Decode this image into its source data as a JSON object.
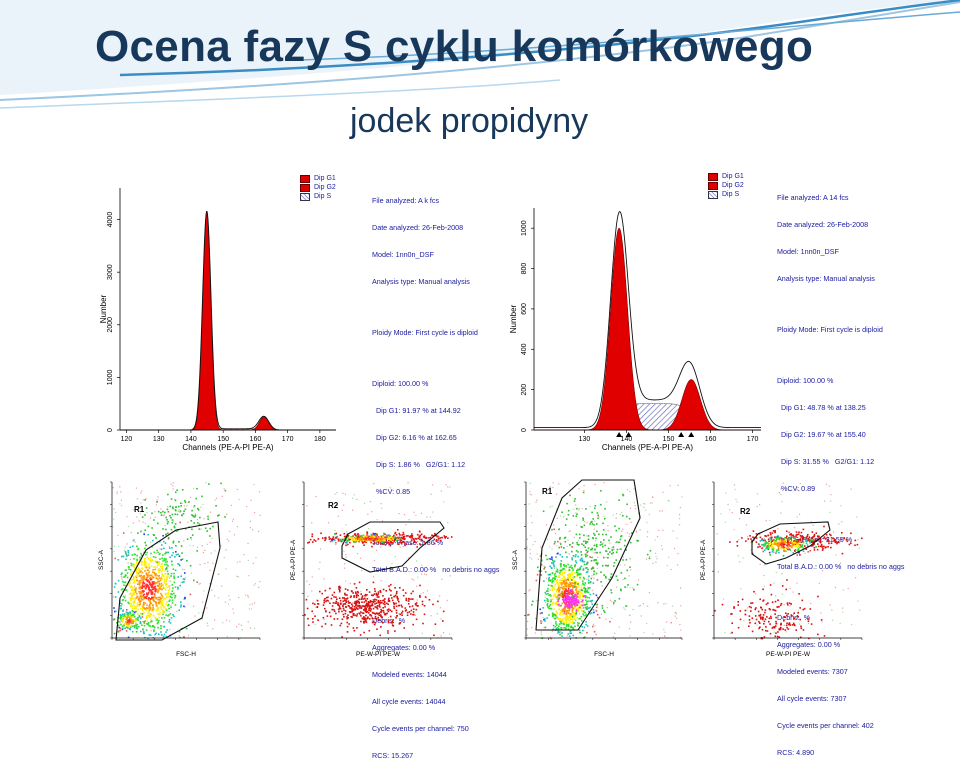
{
  "title": "Ocena fazy S cyklu komórkowego",
  "subtitle": "jodek propidyny",
  "colors": {
    "title": "#17385a",
    "g1_fill": "#e10000",
    "g2_fill": "#e10000",
    "s_fill": "#9aa3d6",
    "info_text": "#1a1aa0",
    "accent_swoosh": "#3a8cc4"
  },
  "legend": [
    "Dip G1",
    "Dip G2",
    "Dip S"
  ],
  "panels": [
    {
      "info": {
        "header": [
          "File analyzed: A k fcs",
          "Date analyzed: 26-Feb-2008",
          "Model: 1nn0n_DSF",
          "Analysis type: Manual analysis"
        ],
        "ploidy": "Ploidy Mode: First cycle is diploid",
        "diploid": [
          "Diploid: 100.00 %",
          "  Dip G1: 91.97 % at 144.92",
          "  Dip G2: 6.16 % at 162.65",
          "  Dip S: 1.86 %   G2/G1: 1.12",
          "  %CV: 0.85"
        ],
        "totals": [
          "Total S-Phase: 1.86 %",
          "Total B.A.D.: 0.00 %   no debris no aggs"
        ],
        "stats": [
          "Debris:  %",
          "Aggregates: 0.00 %",
          "Modeled events: 14044",
          "All cycle events: 14044",
          "Cycle events per channel: 750",
          "RCS: 15.267"
        ]
      }
    },
    {
      "info": {
        "header": [
          "File analyzed: A 14 fcs",
          "Date analyzed: 26-Feb-2008",
          "Model: 1nn0n_DSF",
          "Analysis type: Manual analysis"
        ],
        "ploidy": "Ploidy Mode: First cycle is diploid",
        "diploid": [
          "Diploid: 100.00 %",
          "  Dip G1: 48.78 % at 138.25",
          "  Dip G2: 19.67 % at 155.40",
          "  Dip S: 31.55 %   G2/G1: 1.12",
          "  %CV: 0.89"
        ],
        "totals": [
          "Total S-Phase: 31.55 %",
          "Total B.A.D.: 0.00 %   no debris no aggs"
        ],
        "stats": [
          "Debris:  %",
          "Aggregates: 0.00 %",
          "Modeled events: 7307",
          "All cycle events: 7307",
          "Cycle events per channel: 402",
          "RCS: 4.890"
        ]
      }
    }
  ],
  "chart_data": [
    {
      "type": "area",
      "xlabel": "Channels (PE-A-PI PE-A)",
      "ylabel": "Number",
      "xlim": [
        118,
        185
      ],
      "ylim": [
        0,
        4600
      ],
      "xticks": [
        120,
        130,
        140,
        150,
        160,
        170,
        180
      ],
      "yticks": [
        0,
        1000,
        2000,
        3000,
        4000
      ],
      "series": [
        {
          "name": "Dip G1",
          "peak_x": 144.92,
          "peak_y": 4150,
          "sd": 1.25
        },
        {
          "name": "Dip G2",
          "peak_x": 162.65,
          "peak_y": 250,
          "sd": 1.4
        },
        {
          "name": "Dip S",
          "x_range": [
            144.92,
            162.65
          ],
          "level": 22
        }
      ]
    },
    {
      "type": "area",
      "xlabel": "Channels (PE-A-PI PE-A)",
      "ylabel": "Number",
      "xlim": [
        118,
        172
      ],
      "ylim": [
        0,
        1100
      ],
      "xticks": [
        130,
        140,
        150,
        160,
        170
      ],
      "yticks": [
        0,
        200,
        400,
        600,
        800,
        1000
      ],
      "series": [
        {
          "name": "Dip G1",
          "peak_x": 138.25,
          "peak_y": 1000,
          "sd": 2.0
        },
        {
          "name": "Dip G2",
          "peak_x": 155.4,
          "peak_y": 250,
          "sd": 2.2
        },
        {
          "name": "Dip S",
          "x_range": [
            138.25,
            155.4
          ],
          "level": 130
        }
      ],
      "markers_x": [
        138.25,
        140.5,
        153.0,
        155.4
      ]
    },
    {
      "type": "scatter",
      "gate": "R1",
      "xlabel": "FSC-H",
      "ylabel": "SSC-A"
    },
    {
      "type": "scatter",
      "gate": "R2",
      "xlabel": "PE-W-PI PE-W",
      "ylabel": "PE-A-PI PE-A"
    },
    {
      "type": "scatter",
      "gate": "R1",
      "xlabel": "FSC-H",
      "ylabel": "SSC-A"
    },
    {
      "type": "scatter",
      "gate": "R2",
      "xlabel": "PE-W-PI PE-W",
      "ylabel": "PE-A-PI PE-A"
    }
  ]
}
